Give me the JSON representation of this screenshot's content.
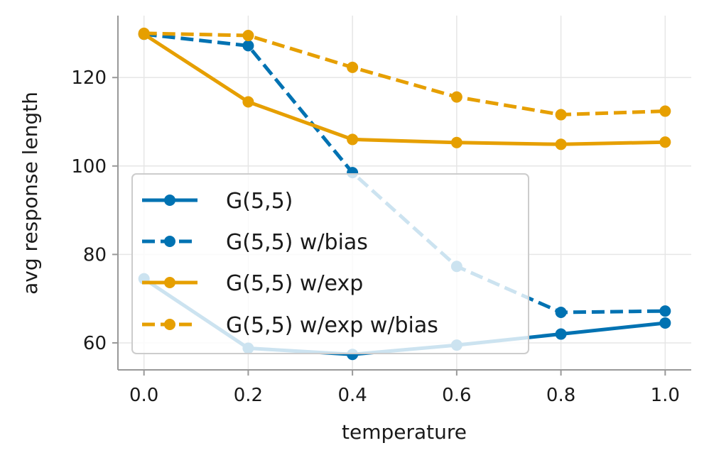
{
  "chart_data": {
    "type": "line",
    "x": [
      0.0,
      0.2,
      0.4,
      0.6,
      0.8,
      1.0
    ],
    "series": [
      {
        "name": "G(5,5)",
        "color": "#0072B2",
        "linestyle": "solid",
        "values": [
          74.5,
          58.8,
          57.4,
          59.5,
          62.0,
          64.5
        ]
      },
      {
        "name": "G(5,5) w/bias",
        "color": "#0072B2",
        "linestyle": "dashed",
        "values": [
          129.8,
          127.2,
          98.5,
          77.3,
          66.9,
          67.2
        ]
      },
      {
        "name": "G(5,5) w/exp",
        "color": "#E69F00",
        "linestyle": "solid",
        "values": [
          129.8,
          114.5,
          106.0,
          105.3,
          104.9,
          105.4
        ]
      },
      {
        "name": "G(5,5) w/exp w/bias",
        "color": "#E69F00",
        "linestyle": "dashed",
        "values": [
          130.0,
          129.5,
          122.3,
          115.6,
          111.6,
          112.4
        ]
      }
    ],
    "title": "",
    "xlabel": "temperature",
    "ylabel": "avg response length",
    "xlim": [
      -0.05,
      1.05
    ],
    "ylim": [
      53.9,
      134.0
    ],
    "xticks": [
      "0.0",
      "0.2",
      "0.4",
      "0.6",
      "0.8",
      "1.0"
    ],
    "yticks": [
      "60",
      "80",
      "100",
      "120"
    ],
    "grid": true,
    "legend_position": "lower-left"
  }
}
